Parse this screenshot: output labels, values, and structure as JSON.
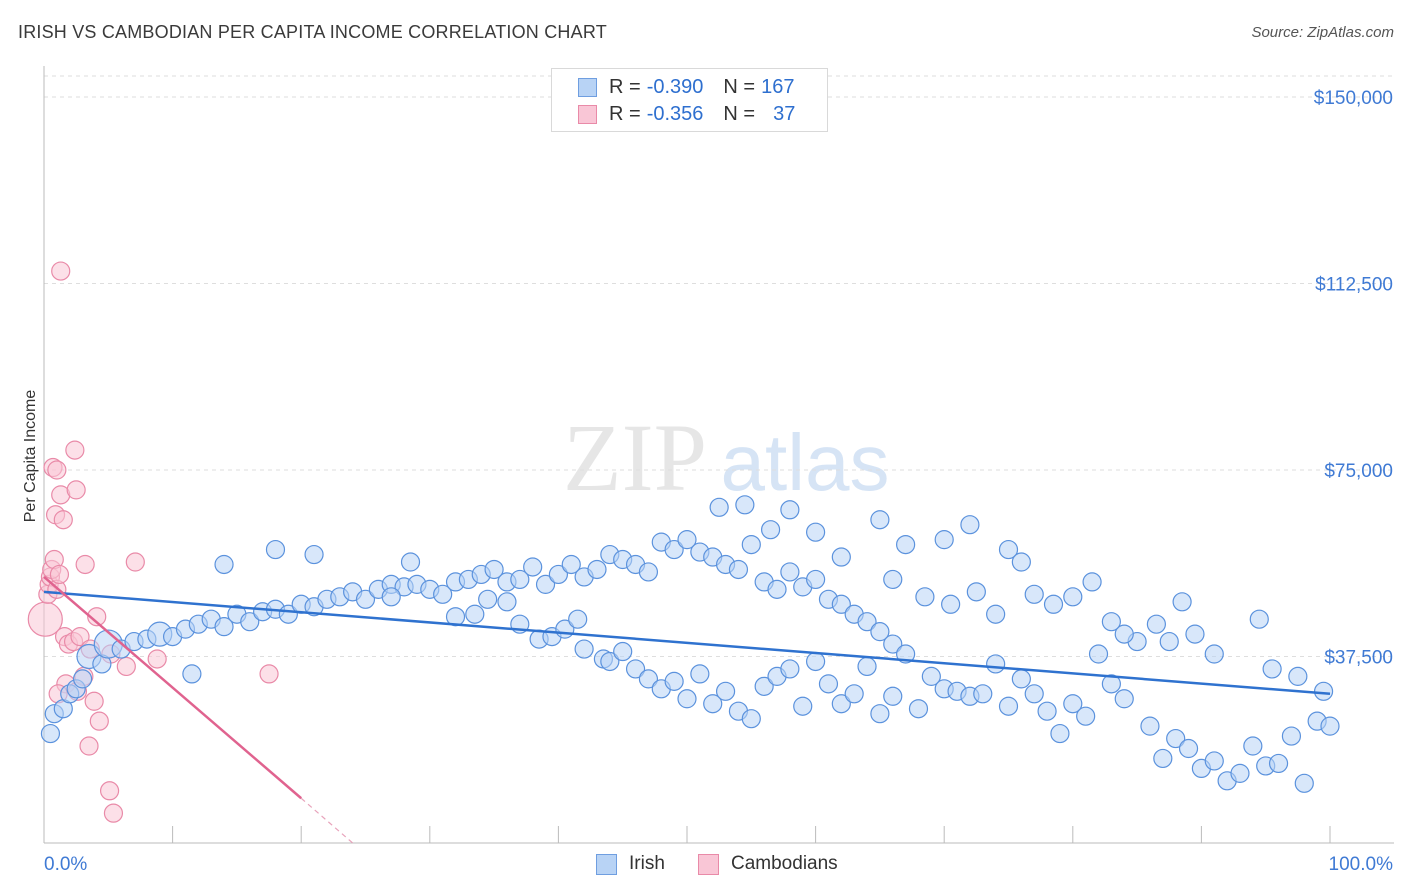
{
  "title": "IRISH VS CAMBODIAN PER CAPITA INCOME CORRELATION CHART",
  "source": "Source: ZipAtlas.com",
  "watermark": {
    "zip": "ZIP",
    "atlas": "atlas"
  },
  "legend": {
    "rows": [
      {
        "r_label": "R =",
        "r_value": "-0.390",
        "n_label": "N =",
        "n_value": "167",
        "fill": "#b8d3f5",
        "stroke": "#6f9ee0"
      },
      {
        "r_label": "R =",
        "r_value": "-0.356",
        "n_label": "N =",
        "n_value": "37",
        "fill": "#f9c6d6",
        "stroke": "#e98aa8"
      }
    ]
  },
  "bottom_legend": [
    {
      "label": "Irish",
      "fill": "#b8d3f5",
      "stroke": "#6f9ee0"
    },
    {
      "label": "Cambodians",
      "fill": "#f9c6d6",
      "stroke": "#e98aa8"
    }
  ],
  "chart_data": {
    "type": "scatter",
    "title": "IRISH VS CAMBODIAN PER CAPITA INCOME CORRELATION CHART",
    "xlabel": "",
    "ylabel": "Per Capita Income",
    "xlim": [
      0,
      100
    ],
    "ylim": [
      0,
      155000
    ],
    "x_tick_labels": [
      "0.0%",
      "100.0%"
    ],
    "y_ticks": [
      37500,
      75000,
      112500,
      150000
    ],
    "y_tick_labels": [
      "$37,500",
      "$75,000",
      "$112,500",
      "$150,000"
    ],
    "colors": {
      "irish_fill": "#b8d3f5",
      "irish_stroke": "#5b92dd",
      "irish_line": "#2f72cf",
      "camb_fill": "#f9c6d6",
      "camb_stroke": "#e98aa8",
      "camb_line": "#e0638f",
      "axis_text": "#3f7ad4",
      "grid": "#dedede"
    },
    "series": [
      {
        "name": "Irish",
        "trend": {
          "x0": 0,
          "y0": 50500,
          "x1": 100,
          "y1": 30000
        },
        "points": [
          [
            0.5,
            22000,
            1
          ],
          [
            0.8,
            26000,
            1
          ],
          [
            1.5,
            27000,
            1
          ],
          [
            2,
            30000,
            1
          ],
          [
            2.5,
            31000,
            1
          ],
          [
            3,
            33000,
            1
          ],
          [
            3.5,
            37500,
            2
          ],
          [
            4.5,
            36000,
            1
          ],
          [
            5,
            40000,
            3
          ],
          [
            6,
            39000,
            1
          ],
          [
            7,
            40500,
            1
          ],
          [
            8,
            41000,
            1
          ],
          [
            9,
            42000,
            2
          ],
          [
            10,
            41500,
            1
          ],
          [
            11,
            43000,
            1
          ],
          [
            12,
            44000,
            1
          ],
          [
            13,
            45000,
            1
          ],
          [
            14,
            43500,
            1
          ],
          [
            15,
            46000,
            1
          ],
          [
            16,
            44500,
            1
          ],
          [
            17,
            46500,
            1
          ],
          [
            18,
            47000,
            1
          ],
          [
            19,
            46000,
            1
          ],
          [
            20,
            48000,
            1
          ],
          [
            21,
            47500,
            1
          ],
          [
            22,
            49000,
            1
          ],
          [
            23,
            49500,
            1
          ],
          [
            24,
            50500,
            1
          ],
          [
            25,
            49000,
            1
          ],
          [
            26,
            51000,
            1
          ],
          [
            27,
            52000,
            1
          ],
          [
            28,
            51500,
            1
          ],
          [
            29,
            52000,
            1
          ],
          [
            30,
            51000,
            1
          ],
          [
            31,
            50000,
            1
          ],
          [
            32,
            52500,
            1
          ],
          [
            33,
            53000,
            1
          ],
          [
            34,
            54000,
            1
          ],
          [
            35,
            55000,
            1
          ],
          [
            36,
            52500,
            1
          ],
          [
            37,
            53000,
            1
          ],
          [
            38,
            55500,
            1
          ],
          [
            39,
            52000,
            1
          ],
          [
            40,
            54000,
            1
          ],
          [
            41,
            56000,
            1
          ],
          [
            42,
            53500,
            1
          ],
          [
            43,
            55000,
            1
          ],
          [
            44,
            58000,
            1
          ],
          [
            45,
            57000,
            1
          ],
          [
            46,
            56000,
            1
          ],
          [
            47,
            54500,
            1
          ],
          [
            48,
            60500,
            1
          ],
          [
            49,
            59000,
            1
          ],
          [
            50,
            61000,
            1
          ],
          [
            51,
            58500,
            1
          ],
          [
            52,
            57500,
            1
          ],
          [
            53,
            56000,
            1
          ],
          [
            54,
            55000,
            1
          ],
          [
            55,
            60000,
            1
          ],
          [
            56,
            52500,
            1
          ],
          [
            57,
            51000,
            1
          ],
          [
            58,
            54500,
            1
          ],
          [
            59,
            51500,
            1
          ],
          [
            60,
            53000,
            1
          ],
          [
            61,
            49000,
            1
          ],
          [
            62,
            48000,
            1
          ],
          [
            63,
            46000,
            1
          ],
          [
            64,
            44500,
            1
          ],
          [
            65,
            42500,
            1
          ],
          [
            66,
            40000,
            1
          ],
          [
            11.5,
            34000,
            1
          ],
          [
            14,
            56000,
            1
          ],
          [
            18,
            59000,
            1
          ],
          [
            21,
            58000,
            1
          ],
          [
            27,
            49500,
            1
          ],
          [
            28.5,
            56500,
            1
          ],
          [
            32,
            45500,
            1
          ],
          [
            33.5,
            46000,
            1
          ],
          [
            34.5,
            49000,
            1
          ],
          [
            36,
            48500,
            1
          ],
          [
            37,
            44000,
            1
          ],
          [
            38.5,
            41000,
            1
          ],
          [
            39.5,
            41500,
            1
          ],
          [
            40.5,
            43000,
            1
          ],
          [
            41.5,
            45000,
            1
          ],
          [
            42,
            39000,
            1
          ],
          [
            43.5,
            37000,
            1
          ],
          [
            44,
            36500,
            1
          ],
          [
            45,
            38500,
            1
          ],
          [
            46,
            35000,
            1
          ],
          [
            47,
            33000,
            1
          ],
          [
            48,
            31000,
            1
          ],
          [
            49,
            32500,
            1
          ],
          [
            50,
            29000,
            1
          ],
          [
            51,
            34000,
            1
          ],
          [
            52,
            28000,
            1
          ],
          [
            53,
            30500,
            1
          ],
          [
            54,
            26500,
            1
          ],
          [
            55,
            25000,
            1
          ],
          [
            56,
            31500,
            1
          ],
          [
            57,
            33500,
            1
          ],
          [
            58,
            35000,
            1
          ],
          [
            59,
            27500,
            1
          ],
          [
            60,
            36500,
            1
          ],
          [
            61,
            32000,
            1
          ],
          [
            62,
            28000,
            1
          ],
          [
            63,
            30000,
            1
          ],
          [
            64,
            35500,
            1
          ],
          [
            65,
            26000,
            1
          ],
          [
            66,
            29500,
            1
          ],
          [
            67,
            38000,
            1
          ],
          [
            68,
            27000,
            1
          ],
          [
            69,
            33500,
            1
          ],
          [
            70,
            31000,
            1
          ],
          [
            71,
            30500,
            1
          ],
          [
            72,
            29500,
            1
          ],
          [
            73,
            30000,
            1
          ],
          [
            74,
            36000,
            1
          ],
          [
            75,
            27500,
            1
          ],
          [
            76,
            33000,
            1
          ],
          [
            77,
            30000,
            1
          ],
          [
            78,
            26500,
            1
          ],
          [
            79,
            22000,
            1
          ],
          [
            80,
            28000,
            1
          ],
          [
            81,
            25500,
            1
          ],
          [
            82,
            38000,
            1
          ],
          [
            83,
            32000,
            1
          ],
          [
            84,
            29000,
            1
          ],
          [
            85,
            40500,
            1
          ],
          [
            86,
            23500,
            1
          ],
          [
            87,
            17000,
            1
          ],
          [
            88,
            21000,
            1
          ],
          [
            89,
            19000,
            1
          ],
          [
            90,
            15000,
            1
          ],
          [
            91,
            16500,
            1
          ],
          [
            92,
            12500,
            1
          ],
          [
            93,
            14000,
            1
          ],
          [
            94,
            19500,
            1
          ],
          [
            95,
            15500,
            1
          ],
          [
            96,
            16000,
            1
          ],
          [
            97,
            21500,
            1
          ],
          [
            98,
            12000,
            1
          ],
          [
            99,
            24500,
            1
          ],
          [
            100,
            23500,
            1
          ],
          [
            94.5,
            45000,
            1
          ],
          [
            88.5,
            48500,
            1
          ],
          [
            75,
            59000,
            1
          ],
          [
            76,
            56500,
            1
          ],
          [
            77,
            50000,
            1
          ],
          [
            66,
            53000,
            1
          ],
          [
            68.5,
            49500,
            1
          ],
          [
            70.5,
            48000,
            1
          ],
          [
            72.5,
            50500,
            1
          ],
          [
            74,
            46000,
            1
          ],
          [
            78.5,
            48000,
            1
          ],
          [
            80,
            49500,
            1
          ],
          [
            72,
            64000,
            1
          ],
          [
            70,
            61000,
            1
          ],
          [
            62,
            57500,
            1
          ],
          [
            56.5,
            63000,
            1
          ],
          [
            58,
            67000,
            1
          ],
          [
            65,
            65000,
            1
          ],
          [
            54.5,
            68000,
            1
          ],
          [
            52.5,
            67500,
            1
          ],
          [
            60,
            62500,
            1
          ],
          [
            67,
            60000,
            1
          ],
          [
            81.5,
            52500,
            1
          ],
          [
            84,
            42000,
            1
          ],
          [
            86.5,
            44000,
            1
          ],
          [
            83,
            44500,
            1
          ],
          [
            87.5,
            40500,
            1
          ],
          [
            89.5,
            42000,
            1
          ],
          [
            91,
            38000,
            1
          ],
          [
            95.5,
            35000,
            1
          ],
          [
            97.5,
            33500,
            1
          ],
          [
            99.5,
            30500,
            1
          ]
        ]
      },
      {
        "name": "Cambodians",
        "trend": {
          "x0": 0,
          "y0": 53500,
          "x1": 20,
          "y1": 9000,
          "dash_x1": 24,
          "dash_y1": 0
        },
        "points": [
          [
            0.1,
            45000,
            3
          ],
          [
            0.3,
            50000,
            1
          ],
          [
            0.4,
            52000,
            1
          ],
          [
            0.5,
            53500,
            1
          ],
          [
            0.6,
            55000,
            1
          ],
          [
            0.8,
            57000,
            1
          ],
          [
            1,
            51000,
            1
          ],
          [
            1.2,
            54000,
            1
          ],
          [
            0.9,
            66000,
            1
          ],
          [
            1.3,
            70000,
            1
          ],
          [
            1.5,
            65000,
            1
          ],
          [
            0.7,
            75500,
            1
          ],
          [
            1,
            75000,
            1
          ],
          [
            2.5,
            71000,
            1
          ],
          [
            2.4,
            79000,
            1
          ],
          [
            1.3,
            115000,
            1
          ],
          [
            3.2,
            56000,
            1
          ],
          [
            7.1,
            56500,
            1
          ],
          [
            1.6,
            41500,
            1
          ],
          [
            1.9,
            40000,
            1
          ],
          [
            2.3,
            40500,
            1
          ],
          [
            2.8,
            41500,
            1
          ],
          [
            3.6,
            39000,
            1
          ],
          [
            4.1,
            45500,
            1
          ],
          [
            5.2,
            38000,
            1
          ],
          [
            6.4,
            35500,
            1
          ],
          [
            8.8,
            37000,
            1
          ],
          [
            17.5,
            34000,
            1
          ],
          [
            1.7,
            32000,
            1
          ],
          [
            2.6,
            30500,
            1
          ],
          [
            3.1,
            33500,
            1
          ],
          [
            3.9,
            28500,
            1
          ],
          [
            4.3,
            24500,
            1
          ],
          [
            3.5,
            19500,
            1
          ],
          [
            5.1,
            10500,
            1
          ],
          [
            5.4,
            6000,
            1
          ],
          [
            1.1,
            30000,
            1
          ]
        ]
      }
    ]
  }
}
